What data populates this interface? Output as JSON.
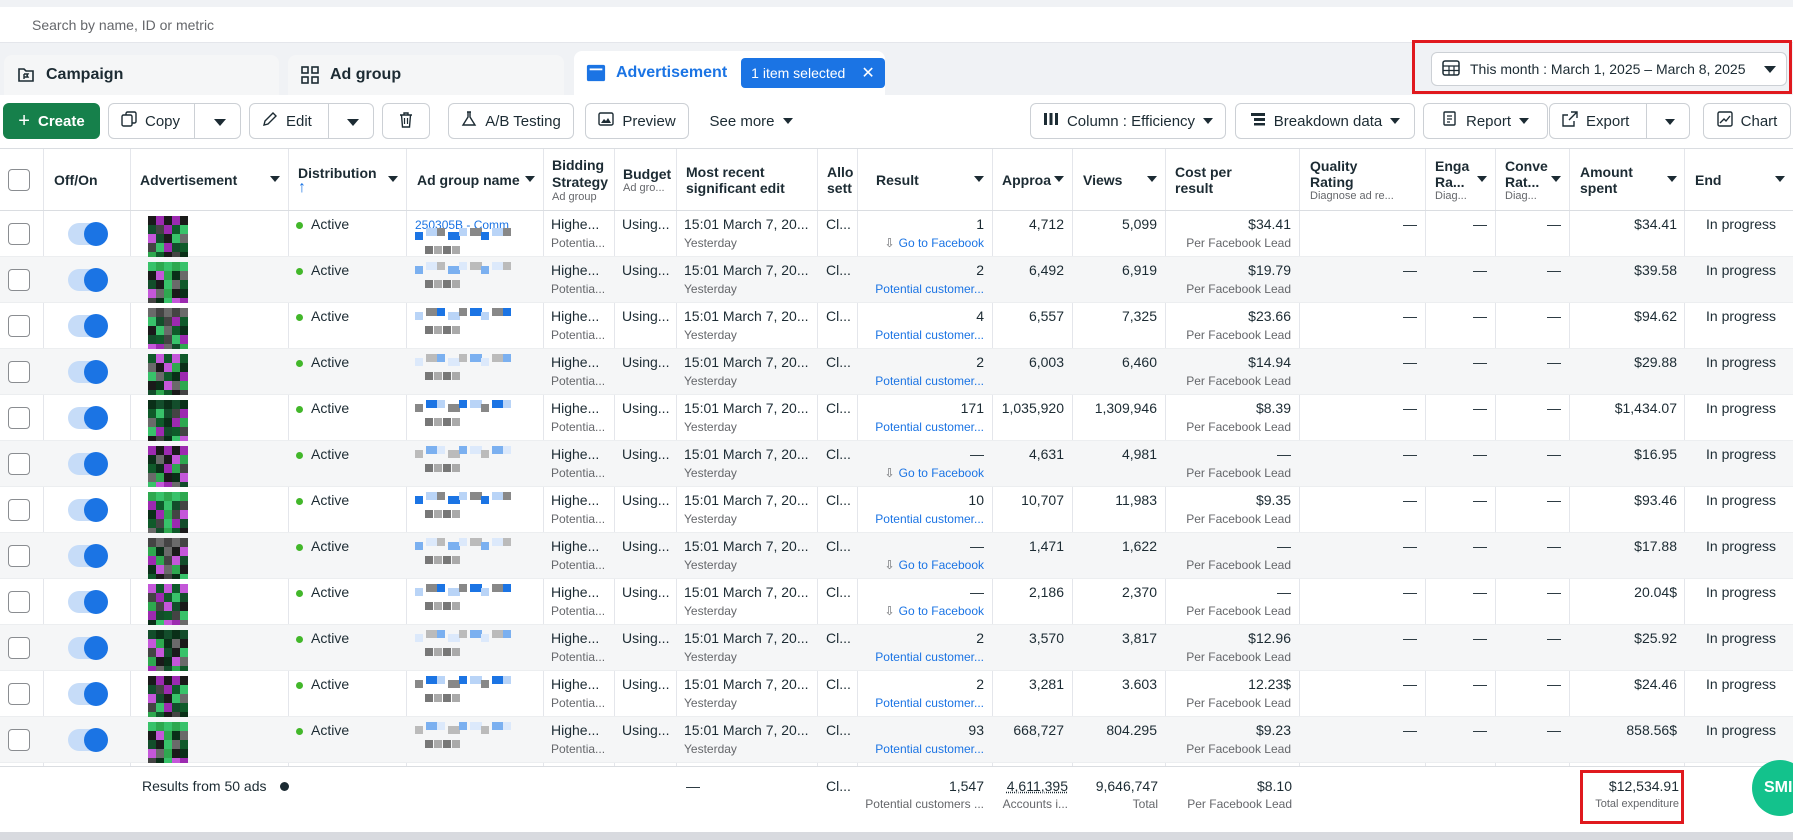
{
  "search": {
    "placeholder": "Search by name, ID or metric"
  },
  "tabs": {
    "campaign": "Campaign",
    "ad_group": "Ad group",
    "advertisement": "Advertisement",
    "selected_badge": "1 item selected"
  },
  "date_range": {
    "label": "This month : March 1, 2025 – March 8, 2025"
  },
  "toolbar": {
    "create": "Create",
    "copy": "Copy",
    "edit": "Edit",
    "ab_testing": "A/B Testing",
    "preview": "Preview",
    "see_more": "See more",
    "column": "Column : Efficiency",
    "breakdown": "Breakdown data",
    "report": "Report",
    "export": "Export",
    "chart": "Chart"
  },
  "columns": {
    "off_on": "Off/On",
    "advertisement": "Advertisement",
    "distribution": "Distribution",
    "distribution_sort": "↑",
    "ad_group_name": "Ad group name",
    "bidding_strategy": "Bidding Strategy",
    "bidding_sub": "Ad group",
    "budget": "Budget",
    "budget_sub": "Ad gro...",
    "recent_edit_1": "Most recent",
    "recent_edit_2": "significant edit",
    "allocation": "Allo",
    "allocation_2": "sett",
    "result": "Result",
    "approach": "Approa",
    "views": "Views",
    "cost_per_result_1": "Cost per",
    "cost_per_result_2": "result",
    "quality_1": "Quality",
    "quality_2": "Rating",
    "quality_sub": "Diagnose ad re...",
    "engagement_1": "Enga",
    "engagement_2": "Ra...",
    "engagement_sub": "Diag...",
    "conversion_1": "Conve",
    "conversion_2": "Rat...",
    "conversion_sub": "Diag...",
    "amount_1": "Amount",
    "amount_2": "spent",
    "end": "End"
  },
  "rows": [
    {
      "status": "Active",
      "ad_group_text": "250305B - Comm",
      "bid": "Highe...",
      "bid_sub": "Potentia...",
      "budget": "Using...",
      "edit": "15:01 March 7, 20...",
      "edit_sub": "Yesterday",
      "alloc": "Cl...",
      "result": "1",
      "result_sub": "Go to Facebook",
      "reach": "4,712",
      "views": "5,099",
      "cpr": "$34.41",
      "cpr_sub": "Per Facebook Lead",
      "quality": "—",
      "eng": "—",
      "conv": "—",
      "spent": "$34.41",
      "end": "In progress"
    },
    {
      "status": "Active",
      "ad_group_text": "",
      "bid": "Highe...",
      "bid_sub": "Potentia...",
      "budget": "Using...",
      "edit": "15:01 March 7, 20...",
      "edit_sub": "Yesterday",
      "alloc": "Cl...",
      "result": "2",
      "result_sub": "Potential customer...",
      "reach": "6,492",
      "views": "6,919",
      "cpr": "$19.79",
      "cpr_sub": "Per Facebook Lead",
      "quality": "—",
      "eng": "—",
      "conv": "—",
      "spent": "$39.58",
      "end": "In progress"
    },
    {
      "status": "Active",
      "ad_group_text": "",
      "bid": "Highe...",
      "bid_sub": "Potentia...",
      "budget": "Using...",
      "edit": "15:01 March 7, 20...",
      "edit_sub": "Yesterday",
      "alloc": "Cl...",
      "result": "4",
      "result_sub": "Potential customer...",
      "reach": "6,557",
      "views": "7,325",
      "cpr": "$23.66",
      "cpr_sub": "Per Facebook Lead",
      "quality": "—",
      "eng": "—",
      "conv": "—",
      "spent": "$94.62",
      "end": "In progress"
    },
    {
      "status": "Active",
      "ad_group_text": "",
      "bid": "Highe...",
      "bid_sub": "Potentia...",
      "budget": "Using...",
      "edit": "15:01 March 7, 20...",
      "edit_sub": "Yesterday",
      "alloc": "Cl...",
      "result": "2",
      "result_sub": "Potential customer...",
      "reach": "6,003",
      "views": "6,460",
      "cpr": "$14.94",
      "cpr_sub": "Per Facebook Lead",
      "quality": "—",
      "eng": "—",
      "conv": "—",
      "spent": "$29.88",
      "end": "In progress"
    },
    {
      "status": "Active",
      "ad_group_text": "",
      "bid": "Highe...",
      "bid_sub": "Potentia...",
      "budget": "Using...",
      "edit": "15:01 March 7, 20...",
      "edit_sub": "Yesterday",
      "alloc": "Cl...",
      "result": "171",
      "result_sub": "Potential customer...",
      "reach": "1,035,920",
      "views": "1,309,946",
      "cpr": "$8.39",
      "cpr_sub": "Per Facebook Lead",
      "quality": "—",
      "eng": "—",
      "conv": "—",
      "spent": "$1,434.07",
      "end": "In progress"
    },
    {
      "status": "Active",
      "ad_group_text": "",
      "bid": "Highe...",
      "bid_sub": "Potentia...",
      "budget": "Using...",
      "edit": "15:01 March 7, 20...",
      "edit_sub": "Yesterday",
      "alloc": "Cl...",
      "result": "—",
      "result_sub": "Go to Facebook",
      "reach": "4,631",
      "views": "4,981",
      "cpr": "—",
      "cpr_sub": "Per Facebook Lead",
      "quality": "—",
      "eng": "—",
      "conv": "—",
      "spent": "$16.95",
      "end": "In progress"
    },
    {
      "status": "Active",
      "ad_group_text": "",
      "bid": "Highe...",
      "bid_sub": "Potentia...",
      "budget": "Using...",
      "edit": "15:01 March 7, 20...",
      "edit_sub": "Yesterday",
      "alloc": "Cl...",
      "result": "10",
      "result_sub": "Potential customer...",
      "reach": "10,707",
      "views": "11,983",
      "cpr": "$9.35",
      "cpr_sub": "Per Facebook Lead",
      "quality": "—",
      "eng": "—",
      "conv": "—",
      "spent": "$93.46",
      "end": "In progress"
    },
    {
      "status": "Active",
      "ad_group_text": "",
      "bid": "Highe...",
      "bid_sub": "Potentia...",
      "budget": "Using...",
      "edit": "15:01 March 7, 20...",
      "edit_sub": "Yesterday",
      "alloc": "Cl...",
      "result": "—",
      "result_sub": "Go to Facebook",
      "reach": "1,471",
      "views": "1,622",
      "cpr": "—",
      "cpr_sub": "Per Facebook Lead",
      "quality": "—",
      "eng": "—",
      "conv": "—",
      "spent": "$17.88",
      "end": "In progress"
    },
    {
      "status": "Active",
      "ad_group_text": "",
      "bid": "Highe...",
      "bid_sub": "Potentia...",
      "budget": "Using...",
      "edit": "15:01 March 7, 20...",
      "edit_sub": "Yesterday",
      "alloc": "Cl...",
      "result": "—",
      "result_sub": "Go to Facebook",
      "reach": "2,186",
      "views": "2,370",
      "cpr": "—",
      "cpr_sub": "Per Facebook Lead",
      "quality": "—",
      "eng": "—",
      "conv": "—",
      "spent": "20.04$",
      "end": "In progress"
    },
    {
      "status": "Active",
      "ad_group_text": "",
      "bid": "Highe...",
      "bid_sub": "Potentia...",
      "budget": "Using...",
      "edit": "15:01 March 7, 20...",
      "edit_sub": "Yesterday",
      "alloc": "Cl...",
      "result": "2",
      "result_sub": "Potential customer...",
      "reach": "3,570",
      "views": "3,817",
      "cpr": "$12.96",
      "cpr_sub": "Per Facebook Lead",
      "quality": "—",
      "eng": "—",
      "conv": "—",
      "spent": "$25.92",
      "end": "In progress"
    },
    {
      "status": "Active",
      "ad_group_text": "",
      "bid": "Highe...",
      "bid_sub": "Potentia...",
      "budget": "Using...",
      "edit": "15:01 March 7, 20...",
      "edit_sub": "Yesterday",
      "alloc": "Cl...",
      "result": "2",
      "result_sub": "Potential customer...",
      "reach": "3,281",
      "views": "3.603",
      "cpr": "12.23$",
      "cpr_sub": "Per Facebook Lead",
      "quality": "—",
      "eng": "—",
      "conv": "—",
      "spent": "$24.46",
      "end": "In progress"
    },
    {
      "status": "Active",
      "ad_group_text": "",
      "bid": "Highe...",
      "bid_sub": "Potentia...",
      "budget": "Using...",
      "edit": "15:01 March 7, 20...",
      "edit_sub": "Yesterday",
      "alloc": "Cl...",
      "result": "93",
      "result_sub": "Potential customer...",
      "reach": "668,727",
      "views": "804.295",
      "cpr": "$9.23",
      "cpr_sub": "Per Facebook Lead",
      "quality": "—",
      "eng": "—",
      "conv": "—",
      "spent": "858.56$",
      "end": "In progress"
    }
  ],
  "footer": {
    "results_label": "Results from 50 ads",
    "edit": "—",
    "alloc": "Cl...",
    "result": "1,547",
    "result_sub": "Potential customers ...",
    "reach": "4,611,395",
    "reach_sub": "Accounts i...",
    "views": "9,646,747",
    "views_sub": "Total",
    "cpr": "$8.10",
    "cpr_sub": "Per Facebook Lead",
    "spent": "$12,534.91",
    "spent_sub": "Total expenditure"
  },
  "chat": {
    "label": "SMI"
  },
  "colors": {
    "accent": "#1b74e4",
    "create": "#16804b",
    "active_dot": "#42b72a",
    "highlight": "#e0191e"
  }
}
